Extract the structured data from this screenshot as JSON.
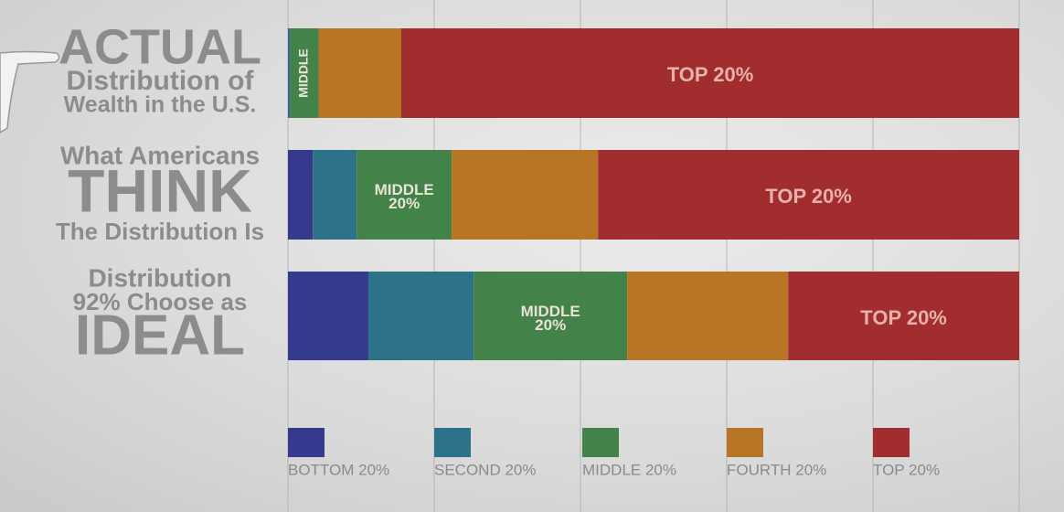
{
  "chart_data": {
    "type": "stacked-bar",
    "orientation": "horizontal",
    "categories": [
      [
        "ACTUAL",
        "Distribution of",
        "Wealth in the U.S."
      ],
      [
        "What Americans",
        "THINK",
        "The Distribution Is"
      ],
      [
        "Distribution",
        "92% Choose as",
        "IDEAL"
      ]
    ],
    "series": [
      {
        "name": "BOTTOM 20%",
        "color": "#363a8c",
        "values": [
          0.1,
          3.4,
          11
        ]
      },
      {
        "name": "SECOND 20%",
        "color": "#2e7289",
        "values": [
          0.2,
          6,
          14.4
        ]
      },
      {
        "name": "MIDDLE 20%",
        "color": "#43834a",
        "values": [
          3.9,
          13,
          21
        ],
        "segment_labels": [
          "MIDDLE",
          "MIDDLE 20%",
          "MIDDLE 20%"
        ]
      },
      {
        "name": "FOURTH 20%",
        "color": "#b87523",
        "values": [
          11.3,
          20,
          22
        ]
      },
      {
        "name": "TOP 20%",
        "color": "#a12d2f",
        "values": [
          84.5,
          57.6,
          31.6
        ],
        "segment_labels": [
          "TOP 20%",
          "TOP 20%",
          "TOP 20%"
        ]
      }
    ],
    "xlim": [
      0,
      100
    ],
    "xticks": [
      0,
      20,
      40,
      60,
      80,
      100
    ],
    "grid": true,
    "legend": "bottom"
  }
}
